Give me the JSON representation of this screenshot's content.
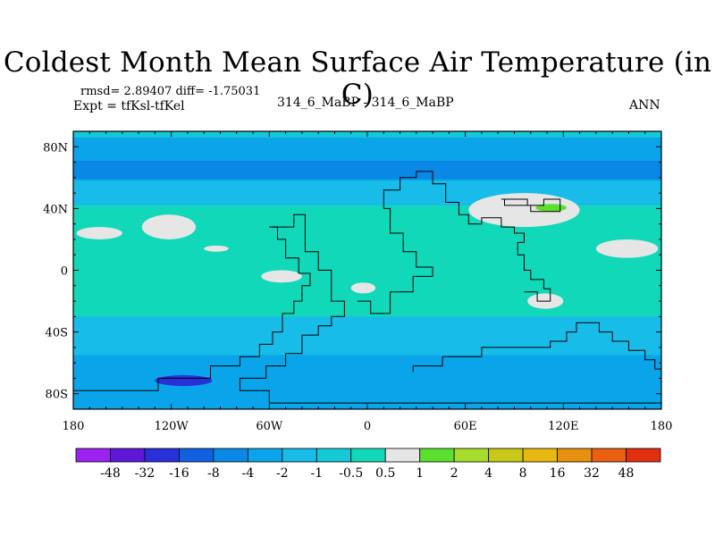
{
  "title": "Coldest Month Mean Surface Air Temperature (in C)",
  "stats_line": "rmsd= 2.89407 diff= -1.75031",
  "expt_line": "Expt = tfKsl-tfKel",
  "center_label": "314_6_MaBP - 314_6_MaBP",
  "season_label": "ANN",
  "chart_data": {
    "type": "heatmap",
    "title": "Coldest Month Mean Surface Air Temperature (in C)",
    "xlabel": "",
    "ylabel": "",
    "xlim": [
      -180,
      180
    ],
    "ylim": [
      -90,
      90
    ],
    "x_ticks": [
      {
        "value": -180,
        "label": "180"
      },
      {
        "value": -120,
        "label": "120W"
      },
      {
        "value": -60,
        "label": "60W"
      },
      {
        "value": 0,
        "label": "0"
      },
      {
        "value": 60,
        "label": "60E"
      },
      {
        "value": 120,
        "label": "120E"
      },
      {
        "value": 180,
        "label": "180"
      }
    ],
    "y_ticks": [
      {
        "value": 80,
        "label": "80N"
      },
      {
        "value": 40,
        "label": "40N"
      },
      {
        "value": 0,
        "label": "0"
      },
      {
        "value": -40,
        "label": "40S"
      },
      {
        "value": -80,
        "label": "80S"
      }
    ],
    "colorbar": {
      "colors": [
        "#9b22f0",
        "#6018d8",
        "#2830d8",
        "#1060e0",
        "#0a88e6",
        "#0aa4ea",
        "#18bce8",
        "#14c8d8",
        "#10d8b8",
        "#e6e6e6",
        "#5ce030",
        "#a8dc2c",
        "#c8c818",
        "#e8b810",
        "#e89010",
        "#e86010",
        "#e03010"
      ],
      "levels": [
        "-48",
        "-32",
        "-16",
        "-8",
        "-4",
        "-2",
        "-1",
        "-0.5",
        "0.5",
        "1",
        "2",
        "4",
        "8",
        "16",
        "32",
        "48"
      ]
    },
    "regions": [
      {
        "name": "background",
        "class_index": 7
      },
      {
        "name": "arctic-band",
        "class_index": 5,
        "lon": [
          -180,
          180
        ],
        "lat": [
          58,
          86
        ]
      },
      {
        "name": "arctic-strong-band",
        "class_index": 4,
        "lon": [
          -180,
          180
        ],
        "lat": [
          59,
          71
        ]
      },
      {
        "name": "north-midlat-band",
        "class_index": 6,
        "lon": [
          -180,
          180
        ],
        "lat": [
          42,
          58
        ]
      },
      {
        "name": "tropics",
        "class_index": 8,
        "lon": [
          -180,
          180
        ],
        "lat": [
          -30,
          42
        ]
      },
      {
        "name": "south-midlat",
        "class_index": 6,
        "lon": [
          -180,
          180
        ],
        "lat": [
          -55,
          -30
        ]
      },
      {
        "name": "south-polar",
        "class_index": 5,
        "lon": [
          -180,
          180
        ],
        "lat": [
          -90,
          -55
        ]
      },
      {
        "name": "antarctic-min",
        "class_index": 2,
        "lon": [
          -130,
          -95
        ],
        "lat": [
          -75,
          -68
        ]
      },
      {
        "name": "asia-warm-anomaly",
        "class_index": 9,
        "lon": [
          62,
          130
        ],
        "lat": [
          28,
          50
        ]
      },
      {
        "name": "asia-green-spot",
        "class_index": 10,
        "lon": [
          103,
          122
        ],
        "lat": [
          38,
          43
        ]
      },
      {
        "name": "pacific-patch-1",
        "class_index": 9,
        "lon": [
          -178,
          -150
        ],
        "lat": [
          20,
          28
        ]
      },
      {
        "name": "pacific-patch-2",
        "class_index": 9,
        "lon": [
          -138,
          -105
        ],
        "lat": [
          20,
          36
        ]
      },
      {
        "name": "pacific-patch-3",
        "class_index": 9,
        "lon": [
          -100,
          -85
        ],
        "lat": [
          12,
          16
        ]
      },
      {
        "name": "pacific-patch-4",
        "class_index": 9,
        "lon": [
          -65,
          -40
        ],
        "lat": [
          -8,
          0
        ]
      },
      {
        "name": "atlantic-patch",
        "class_index": 9,
        "lon": [
          -10,
          5
        ],
        "lat": [
          -15,
          -8
        ]
      },
      {
        "name": "indian-patch",
        "class_index": 9,
        "lon": [
          98,
          120
        ],
        "lat": [
          -25,
          -15
        ]
      },
      {
        "name": "pacific-east-patch",
        "class_index": 9,
        "lon": [
          140,
          178
        ],
        "lat": [
          8,
          20
        ]
      }
    ]
  }
}
